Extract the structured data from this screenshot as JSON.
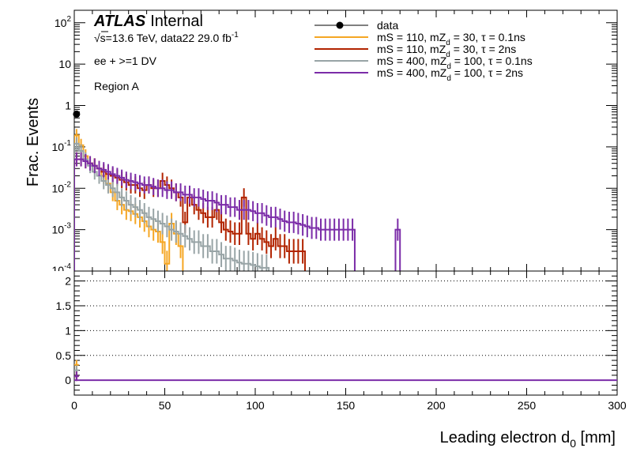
{
  "chart_data": {
    "type": "histogram",
    "experiment": "ATLAS",
    "status": "Internal",
    "energy_label": "√s=13.6 TeV, data22 29.0 fb",
    "lumi_exponent": "-1",
    "selection": "ee + >=1 DV",
    "region": "Region A",
    "xlabel": "Leading electron d",
    "xlabel_sub": "0",
    "xlabel_unit": " [mm]",
    "ylabel": "Frac. Events",
    "xlim": [
      0,
      300
    ],
    "xticks": [
      "0",
      "50",
      "100",
      "150",
      "200",
      "250",
      "300"
    ],
    "top_panel": {
      "yscale": "log",
      "ylim": [
        0.0001,
        200
      ],
      "yticks": [
        {
          "value": 0.001,
          "label": "10",
          "exp": "-3"
        },
        {
          "value": 0.01,
          "label": "10",
          "exp": "-2"
        },
        {
          "value": 0.1,
          "label": "10",
          "exp": "-1"
        },
        {
          "value": 1,
          "label": "1",
          "exp": ""
        },
        {
          "value": 10,
          "label": "10",
          "exp": ""
        },
        {
          "value": 100,
          "label": "10",
          "exp": "2"
        }
      ]
    },
    "ratio_panel": {
      "ylim": [
        -0.3,
        2.2
      ],
      "yticks": [
        "0",
        "0.5",
        "1",
        "1.5",
        "2"
      ],
      "gridlines": [
        0.5,
        1,
        1.5,
        2
      ]
    },
    "bin_width": 2.5,
    "legend": {
      "placement": "top-right",
      "entries": [
        {
          "id": "data",
          "label": "data",
          "kind": "marker",
          "color": "#000000"
        },
        {
          "id": "s1",
          "label": "mS = 110, mZ",
          "sub": "d",
          "tail": " = 30, τ = 0.1ns",
          "kind": "line",
          "color": "#f5a623"
        },
        {
          "id": "s2",
          "label": "mS = 110, mZ",
          "sub": "d",
          "tail": " = 30, τ = 2ns",
          "kind": "line",
          "color": "#b22400"
        },
        {
          "id": "s3",
          "label": "mS = 400, mZ",
          "sub": "d",
          "tail": " = 100, τ = 0.1ns",
          "kind": "line",
          "color": "#98a4a6"
        },
        {
          "id": "s4",
          "label": "mS = 400, mZ",
          "sub": "d",
          "tail": " = 100, τ = 2ns",
          "kind": "line",
          "color": "#7b2ca8"
        }
      ]
    },
    "data_points": [
      {
        "x": 1.25,
        "y": 0.62
      }
    ],
    "series": [
      {
        "id": "s1",
        "color": "#f5a623",
        "bins": [
          [
            0,
            0.19
          ],
          [
            2.5,
            0.11
          ],
          [
            5,
            0.06
          ],
          [
            7.5,
            0.04
          ],
          [
            10,
            0.035
          ],
          [
            12.5,
            0.03
          ],
          [
            15,
            0.02
          ],
          [
            17.5,
            0.013
          ],
          [
            20,
            0.008
          ],
          [
            22.5,
            0.005
          ],
          [
            25,
            0.004
          ],
          [
            27.5,
            0.003
          ],
          [
            30,
            0.0028
          ],
          [
            32.5,
            0.0024
          ],
          [
            35,
            0.002
          ],
          [
            37.5,
            0.0016
          ],
          [
            40,
            0.0012
          ],
          [
            42.5,
            0.001
          ],
          [
            45,
            0.0009
          ],
          [
            47.5,
            0.0005
          ],
          [
            50,
            0.00015
          ],
          [
            52.5,
            0.0014
          ],
          [
            55,
            0.0008
          ],
          [
            57.5,
            0.0004
          ]
        ]
      },
      {
        "id": "s2",
        "color": "#b22400",
        "bins": [
          [
            0,
            0.05
          ],
          [
            2.5,
            0.05
          ],
          [
            5,
            0.045
          ],
          [
            7.5,
            0.04
          ],
          [
            10,
            0.035
          ],
          [
            12.5,
            0.03
          ],
          [
            15,
            0.025
          ],
          [
            17.5,
            0.022
          ],
          [
            20,
            0.02
          ],
          [
            22.5,
            0.018
          ],
          [
            25,
            0.016
          ],
          [
            27.5,
            0.014
          ],
          [
            30,
            0.012
          ],
          [
            32.5,
            0.012
          ],
          [
            35,
            0.01
          ],
          [
            37.5,
            0.009
          ],
          [
            40,
            0.012
          ],
          [
            42.5,
            0.01
          ],
          [
            45,
            0.01
          ],
          [
            47.5,
            0.015
          ],
          [
            50,
            0.012
          ],
          [
            52.5,
            0.01
          ],
          [
            55,
            0.008
          ],
          [
            57.5,
            0.006
          ],
          [
            60,
            0.0015
          ],
          [
            62.5,
            0.006
          ],
          [
            65,
            0.004
          ],
          [
            67.5,
            0.003
          ],
          [
            70,
            0.0025
          ],
          [
            72.5,
            0.002
          ],
          [
            75,
            0.002
          ],
          [
            77.5,
            0.003
          ],
          [
            80,
            0.0015
          ],
          [
            82.5,
            0.001
          ],
          [
            85,
            0.0009
          ],
          [
            87.5,
            0.0008
          ],
          [
            90,
            0.0008
          ],
          [
            92.5,
            0.006
          ],
          [
            95,
            0.0008
          ],
          [
            97.5,
            0.0006
          ],
          [
            100,
            0.0008
          ],
          [
            102.5,
            0.0006
          ],
          [
            105,
            0.0005
          ],
          [
            107.5,
            0.0004
          ],
          [
            110,
            0.0006
          ],
          [
            112.5,
            0.0004
          ],
          [
            115,
            0.0004
          ],
          [
            117.5,
            0.0003
          ],
          [
            120,
            0.0003
          ],
          [
            122.5,
            0.0003
          ],
          [
            125,
            0.0003
          ]
        ]
      },
      {
        "id": "s3",
        "color": "#98a4a6",
        "bins": [
          [
            0,
            0.12
          ],
          [
            2.5,
            0.08
          ],
          [
            5,
            0.05
          ],
          [
            7.5,
            0.035
          ],
          [
            10,
            0.025
          ],
          [
            12.5,
            0.02
          ],
          [
            15,
            0.015
          ],
          [
            17.5,
            0.012
          ],
          [
            20,
            0.01
          ],
          [
            22.5,
            0.008
          ],
          [
            25,
            0.006
          ],
          [
            27.5,
            0.005
          ],
          [
            30,
            0.004
          ],
          [
            32.5,
            0.0035
          ],
          [
            35,
            0.003
          ],
          [
            37.5,
            0.0025
          ],
          [
            40,
            0.002
          ],
          [
            42.5,
            0.0018
          ],
          [
            45,
            0.0016
          ],
          [
            47.5,
            0.0014
          ],
          [
            50,
            0.0012
          ],
          [
            52.5,
            0.001
          ],
          [
            55,
            0.0009
          ],
          [
            57.5,
            0.0008
          ],
          [
            60,
            0.0007
          ],
          [
            62.5,
            0.0006
          ],
          [
            65,
            0.0005
          ],
          [
            67.5,
            0.0005
          ],
          [
            70,
            0.0004
          ],
          [
            72.5,
            0.0004
          ],
          [
            75,
            0.0003
          ],
          [
            77.5,
            0.0003
          ],
          [
            80,
            0.00025
          ],
          [
            82.5,
            0.0002
          ],
          [
            85,
            0.0002
          ],
          [
            87.5,
            0.00018
          ],
          [
            90,
            0.00016
          ],
          [
            92.5,
            0.00015
          ],
          [
            95,
            0.00015
          ],
          [
            97.5,
            0.00014
          ],
          [
            100,
            0.00013
          ],
          [
            102.5,
            0.00012
          ],
          [
            105,
            0.00012
          ]
        ]
      },
      {
        "id": "s4",
        "color": "#7b2ca8",
        "bins": [
          [
            0,
            0.05
          ],
          [
            2.5,
            0.05
          ],
          [
            5,
            0.045
          ],
          [
            7.5,
            0.04
          ],
          [
            10,
            0.035
          ],
          [
            12.5,
            0.03
          ],
          [
            15,
            0.028
          ],
          [
            17.5,
            0.025
          ],
          [
            20,
            0.022
          ],
          [
            22.5,
            0.02
          ],
          [
            25,
            0.018
          ],
          [
            27.5,
            0.016
          ],
          [
            30,
            0.015
          ],
          [
            32.5,
            0.014
          ],
          [
            35,
            0.013
          ],
          [
            37.5,
            0.012
          ],
          [
            40,
            0.012
          ],
          [
            42.5,
            0.011
          ],
          [
            45,
            0.01
          ],
          [
            47.5,
            0.01
          ],
          [
            50,
            0.009
          ],
          [
            52.5,
            0.009
          ],
          [
            55,
            0.008
          ],
          [
            57.5,
            0.008
          ],
          [
            60,
            0.007
          ],
          [
            62.5,
            0.007
          ],
          [
            65,
            0.006
          ],
          [
            67.5,
            0.006
          ],
          [
            70,
            0.0055
          ],
          [
            72.5,
            0.005
          ],
          [
            75,
            0.005
          ],
          [
            77.5,
            0.0045
          ],
          [
            80,
            0.004
          ],
          [
            82.5,
            0.004
          ],
          [
            85,
            0.0035
          ],
          [
            87.5,
            0.0035
          ],
          [
            90,
            0.003
          ],
          [
            92.5,
            0.003
          ],
          [
            95,
            0.003
          ],
          [
            97.5,
            0.0028
          ],
          [
            100,
            0.0025
          ],
          [
            102.5,
            0.0025
          ],
          [
            105,
            0.0022
          ],
          [
            107.5,
            0.002
          ],
          [
            110,
            0.002
          ],
          [
            112.5,
            0.0018
          ],
          [
            115,
            0.0016
          ],
          [
            117.5,
            0.0015
          ],
          [
            120,
            0.0015
          ],
          [
            122.5,
            0.0014
          ],
          [
            125,
            0.0013
          ],
          [
            127.5,
            0.0012
          ],
          [
            130,
            0.0011
          ],
          [
            132.5,
            0.0011
          ],
          [
            135,
            0.001
          ],
          [
            137.5,
            0.001
          ],
          [
            140,
            0.001
          ],
          [
            142.5,
            0.001
          ],
          [
            145,
            0.001
          ],
          [
            147.5,
            0.001
          ],
          [
            150,
            0.001
          ],
          [
            152.5,
            0.001
          ],
          [
            177.5,
            0.001
          ]
        ]
      }
    ],
    "ratio_series": [
      {
        "id": "s1",
        "color": "#f5a623",
        "x": 1.25,
        "y": 0.31
      },
      {
        "id": "s3",
        "color": "#98a4a6",
        "x": 1.25,
        "y": 0.2
      },
      {
        "id": "s2",
        "color": "#b22400",
        "x": 1.25,
        "y": 0.08
      },
      {
        "id": "s4",
        "color": "#7b2ca8",
        "x": 1.25,
        "y": 0.08
      }
    ]
  }
}
